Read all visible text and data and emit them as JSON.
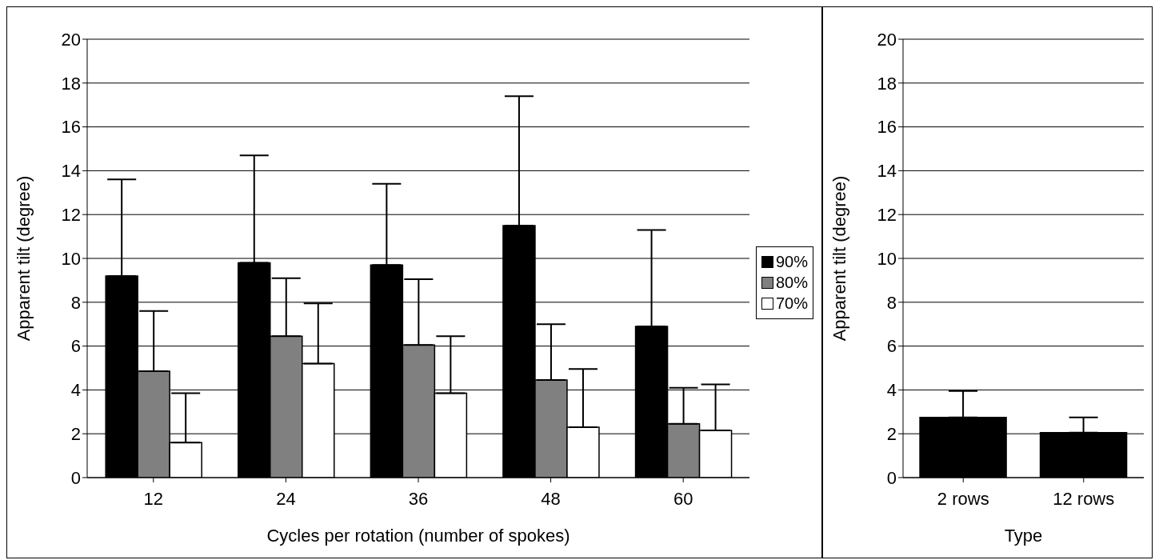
{
  "chart_data": [
    {
      "type": "bar",
      "xlabel": "Cycles per rotation (number of spokes)",
      "ylabel": "Apparent tilt (degree)",
      "categories": [
        "12",
        "24",
        "36",
        "48",
        "60"
      ],
      "series": [
        {
          "name": "90%",
          "color": "#000000",
          "values": [
            9.2,
            9.8,
            9.7,
            11.5,
            6.9
          ],
          "errors": [
            [
              9.2,
              13.6
            ],
            [
              9.8,
              14.7
            ],
            [
              9.7,
              13.4
            ],
            [
              11.5,
              17.4
            ],
            [
              6.9,
              11.3
            ]
          ]
        },
        {
          "name": "80%",
          "color": "#808080",
          "values": [
            4.85,
            6.45,
            6.05,
            4.45,
            2.45
          ],
          "errors": [
            [
              4.85,
              7.6
            ],
            [
              6.45,
              9.1
            ],
            [
              6.05,
              9.05
            ],
            [
              4.45,
              7.0
            ],
            [
              2.45,
              4.1
            ]
          ]
        },
        {
          "name": "70%",
          "color": "#ffffff",
          "values": [
            1.6,
            5.2,
            3.85,
            2.3,
            2.15
          ],
          "errors": [
            [
              1.6,
              3.85
            ],
            [
              5.2,
              7.95
            ],
            [
              3.85,
              6.45
            ],
            [
              2.3,
              4.95
            ],
            [
              2.15,
              4.25
            ]
          ]
        }
      ],
      "ylim": [
        0,
        20
      ],
      "yticks": [
        0,
        2,
        4,
        6,
        8,
        10,
        12,
        14,
        16,
        18,
        20
      ],
      "grid": "y",
      "legend": "right"
    },
    {
      "type": "bar",
      "xlabel": "Type",
      "ylabel": "Apparent tilt (degree)",
      "categories": [
        "2 rows",
        "12 rows"
      ],
      "series": [
        {
          "color": "#000000",
          "values": [
            2.75,
            2.05
          ],
          "errors": [
            [
              2.75,
              3.95
            ],
            [
              2.05,
              2.75
            ]
          ]
        }
      ],
      "ylim": [
        0,
        20
      ],
      "yticks": [
        0,
        2,
        4,
        6,
        8,
        10,
        12,
        14,
        16,
        18,
        20
      ],
      "grid": "y"
    }
  ]
}
